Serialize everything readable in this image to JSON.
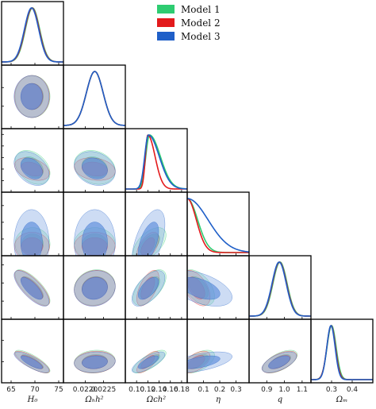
{
  "chart_data": {
    "type": "corner",
    "title": "",
    "parameters": [
      {
        "key": "H0",
        "label": "H₀",
        "range": [
          63,
          76
        ],
        "ticks": [
          65,
          70,
          75
        ],
        "tick_labels": [
          "65",
          "70",
          "75"
        ]
      },
      {
        "key": "obh2",
        "label": "Ωₕh²",
        "range": [
          0.0214,
          0.0231
        ],
        "ticks": [
          0.022,
          0.0225
        ],
        "tick_labels": [
          "0.0220",
          "0.0225"
        ]
      },
      {
        "key": "och2",
        "label": "Ωᴄh²",
        "range": [
          0.08,
          0.19
        ],
        "ticks": [
          0.1,
          0.12,
          0.14,
          0.16,
          0.18
        ],
        "tick_labels": [
          "0.10",
          "0.12",
          "0.14",
          "0.16",
          "0.18"
        ]
      },
      {
        "key": "eta",
        "label": "η",
        "range": [
          0.0,
          0.38
        ],
        "ticks": [
          0.1,
          0.2,
          0.3
        ],
        "tick_labels": [
          "0.1",
          "0.2",
          "0.3"
        ]
      },
      {
        "key": "q",
        "label": "q",
        "range": [
          0.8,
          1.15
        ],
        "ticks": [
          0.9,
          1.0,
          1.1
        ],
        "tick_labels": [
          "0.9",
          "1.0",
          "1.1"
        ]
      },
      {
        "key": "om",
        "label": "Ωₘ",
        "range": [
          0.2,
          0.5
        ],
        "ticks": [
          0.3,
          0.4
        ],
        "tick_labels": [
          "0.3",
          "0.4"
        ]
      }
    ],
    "legend": {
      "placement": "top-right"
    },
    "series": [
      {
        "name": "Model 1",
        "color": "#2ecc71",
        "fill": "#6ede9b",
        "means": [
          69.5,
          0.02226,
          0.123,
          0.07,
          0.975,
          0.3
        ],
        "sigmas": [
          1.5,
          0.00023,
          0.012,
          0.04,
          0.04,
          0.022
        ]
      },
      {
        "name": "Model 2",
        "color": "#e31a1c",
        "fill": "#f26a6c",
        "means": [
          69.4,
          0.02226,
          0.12,
          0.055,
          0.972,
          0.298
        ],
        "sigmas": [
          1.5,
          0.00023,
          0.008,
          0.035,
          0.04,
          0.021
        ]
      },
      {
        "name": "Model 3",
        "color": "#1f5fc8",
        "fill": "#5f8fdc",
        "means": [
          69.3,
          0.02226,
          0.121,
          0.08,
          0.97,
          0.297
        ],
        "sigmas": [
          1.5,
          0.00023,
          0.012,
          0.08,
          0.04,
          0.02
        ]
      }
    ]
  }
}
